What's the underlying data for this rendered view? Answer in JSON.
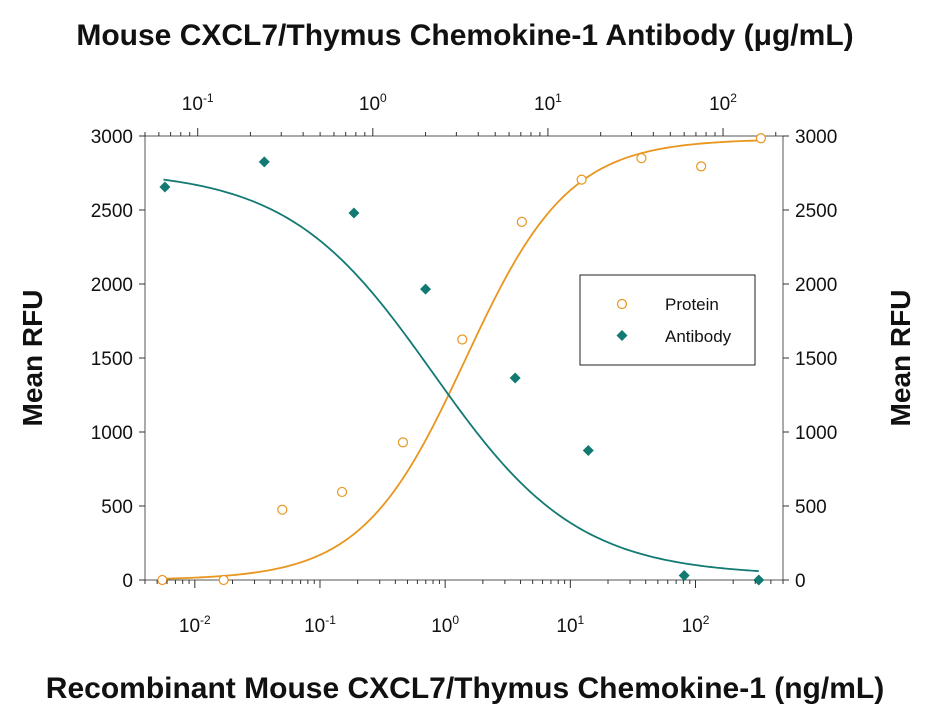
{
  "chart_data": {
    "type": "scatter",
    "top_title": "Mouse CXCL7/Thymus Chemokine-1 Antibody (μg/mL)",
    "xlabel": "Recombinant Mouse CXCL7/Thymus Chemokine-1 (ng/mL)",
    "ylabel_left": "Mean RFU",
    "ylabel_right": "Mean RFU",
    "ylim": [
      0,
      3000
    ],
    "y_ticks": [
      "0",
      "500",
      "1000",
      "1500",
      "2000",
      "2500",
      "3000"
    ],
    "x_scale": "log",
    "xlim": [
      0.004,
      500
    ],
    "x_ticks": [
      {
        "base": "10",
        "exp": "-2",
        "value": 0.01
      },
      {
        "base": "10",
        "exp": "-1",
        "value": 0.1
      },
      {
        "base": "10",
        "exp": "0",
        "value": 1
      },
      {
        "base": "10",
        "exp": "1",
        "value": 10
      },
      {
        "base": "10",
        "exp": "2",
        "value": 100
      }
    ],
    "top_x_scale": "log",
    "top_xlim": [
      0.05,
      220
    ],
    "top_x_ticks": [
      {
        "base": "10",
        "exp": "-1",
        "value": 0.1
      },
      {
        "base": "10",
        "exp": "0",
        "value": 1
      },
      {
        "base": "10",
        "exp": "1",
        "value": 10
      },
      {
        "base": "10",
        "exp": "2",
        "value": 100
      }
    ],
    "legend_position": "right",
    "series": [
      {
        "name": "Protein",
        "axis": "bottom",
        "marker": "open-circle",
        "color": "#e8961e",
        "x": [
          0.0055,
          0.017,
          0.05,
          0.15,
          0.46,
          1.37,
          4.1,
          12.3,
          37,
          111,
          333
        ],
        "y": [
          0,
          0,
          475,
          595,
          930,
          1625,
          2420,
          2705,
          2850,
          2795,
          2985
        ],
        "curve": {
          "bottom": 0,
          "top": 2980,
          "ec50": 1.45,
          "hill": 1.05
        }
      },
      {
        "name": "Antibody",
        "axis": "top",
        "marker": "filled-diamond",
        "color": "#127a72",
        "x": [
          0.065,
          0.24,
          0.78,
          2.0,
          6.5,
          17,
          60,
          160
        ],
        "y": [
          2655,
          2825,
          2480,
          1965,
          1365,
          875,
          30,
          0
        ],
        "curve": {
          "bottom": 30,
          "top": 2770,
          "ec50": 2.2,
          "hill": 1.05
        }
      }
    ]
  }
}
